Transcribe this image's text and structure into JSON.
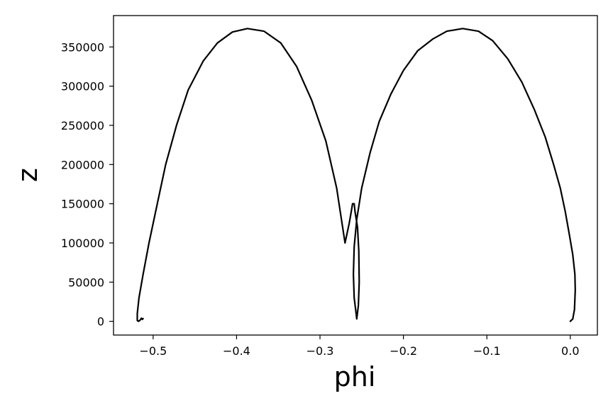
{
  "chart_data": {
    "type": "line",
    "title": "",
    "xlabel": "phi",
    "ylabel": "z",
    "xlim": [
      -0.5475,
      0.0325
    ],
    "ylim": [
      -17500,
      390000
    ],
    "grid": false,
    "legend": "none",
    "line_color": "#000000",
    "xticks": [
      {
        "value": -0.5,
        "label": "−0.5"
      },
      {
        "value": -0.4,
        "label": "−0.4"
      },
      {
        "value": -0.3,
        "label": "−0.3"
      },
      {
        "value": -0.2,
        "label": "−0.2"
      },
      {
        "value": -0.1,
        "label": "−0.1"
      },
      {
        "value": 0.0,
        "label": "0.0"
      }
    ],
    "yticks": [
      {
        "value": 0,
        "label": "0"
      },
      {
        "value": 50000,
        "label": "50000"
      },
      {
        "value": 100000,
        "label": "100000"
      },
      {
        "value": 150000,
        "label": "150000"
      },
      {
        "value": 200000,
        "label": "200000"
      },
      {
        "value": 250000,
        "label": "250000"
      },
      {
        "value": 300000,
        "label": "300000"
      },
      {
        "value": 350000,
        "label": "350000"
      }
    ],
    "series": [
      {
        "x": [
          0.0,
          0.003,
          0.005,
          0.006,
          0.0055,
          0.003,
          -0.001,
          -0.006,
          -0.012,
          -0.02,
          -0.03,
          -0.043,
          -0.058,
          -0.075,
          -0.093,
          -0.11,
          -0.129,
          -0.148,
          -0.165,
          -0.183,
          -0.2,
          -0.215,
          -0.229,
          -0.24,
          -0.25,
          -0.256,
          -0.259,
          -0.26,
          -0.259,
          -0.2565,
          -0.256,
          -0.254,
          -0.253,
          -0.2535,
          -0.255,
          -0.258,
          -0.259,
          -0.261,
          -0.2625,
          -0.265,
          -0.27,
          -0.28,
          -0.293,
          -0.31,
          -0.328,
          -0.347,
          -0.367,
          -0.387,
          -0.405,
          -0.423,
          -0.44,
          -0.458,
          -0.472,
          -0.485,
          -0.495,
          -0.505,
          -0.512,
          -0.517,
          -0.519,
          -0.519,
          -0.5175,
          -0.516,
          -0.514,
          -0.513,
          -0.512
        ],
        "y": [
          0,
          3000,
          15000,
          40000,
          60000,
          85000,
          110000,
          140000,
          170000,
          200000,
          235000,
          270000,
          305000,
          335000,
          358000,
          370000,
          373500,
          370000,
          360000,
          345000,
          320000,
          290000,
          255000,
          215000,
          170000,
          130000,
          95000,
          60000,
          30000,
          8000,
          3000,
          20000,
          50000,
          90000,
          120000,
          140000,
          150000,
          150000,
          140000,
          125000,
          100000,
          170000,
          230000,
          282000,
          325000,
          355000,
          370000,
          373500,
          369000,
          355000,
          332000,
          295000,
          250000,
          200000,
          150000,
          100000,
          60000,
          30000,
          10000,
          1000,
          0,
          1000,
          4000,
          2500,
          3500
        ]
      }
    ]
  }
}
